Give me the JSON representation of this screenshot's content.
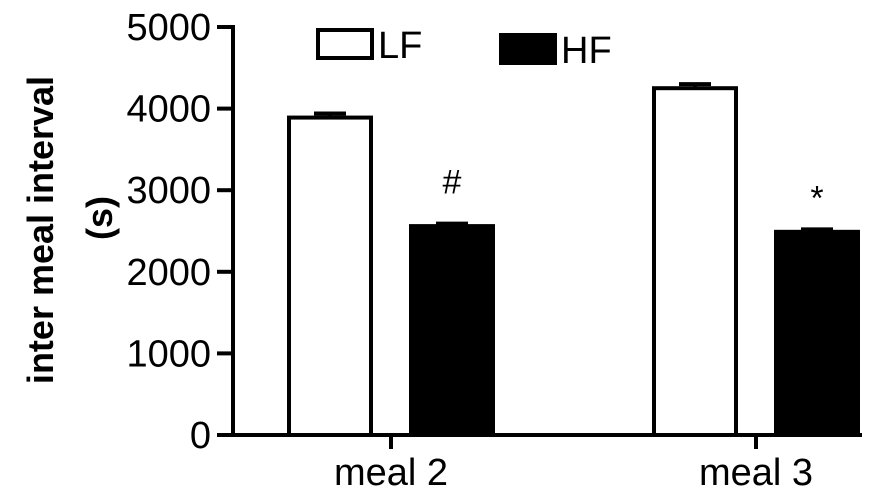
{
  "chart_data": {
    "type": "bar",
    "title": "",
    "xlabel": "",
    "ylabel_lines": [
      "inter meal interval",
      "(s)"
    ],
    "ylim": [
      0,
      5000
    ],
    "yticks": [
      0,
      1000,
      2000,
      3000,
      4000,
      5000
    ],
    "ytick_labels": [
      "0",
      "1000",
      "2000",
      "3000",
      "4000",
      "5000"
    ],
    "categories": [
      "meal 2",
      "meal 3"
    ],
    "series": [
      {
        "name": "LF",
        "values": [
          3890,
          4250
        ],
        "errors": [
          50,
          50
        ],
        "fill": "#ffffff",
        "stroke": "#000000"
      },
      {
        "name": "HF",
        "values": [
          2560,
          2490
        ],
        "errors": [
          30,
          30
        ],
        "fill": "#000000",
        "stroke": "#000000"
      }
    ],
    "annotations": [
      {
        "text": "#",
        "category": "meal 2",
        "series": "HF"
      },
      {
        "text": "*",
        "category": "meal 3",
        "series": "HF"
      }
    ],
    "legend": "top",
    "grid": false
  }
}
